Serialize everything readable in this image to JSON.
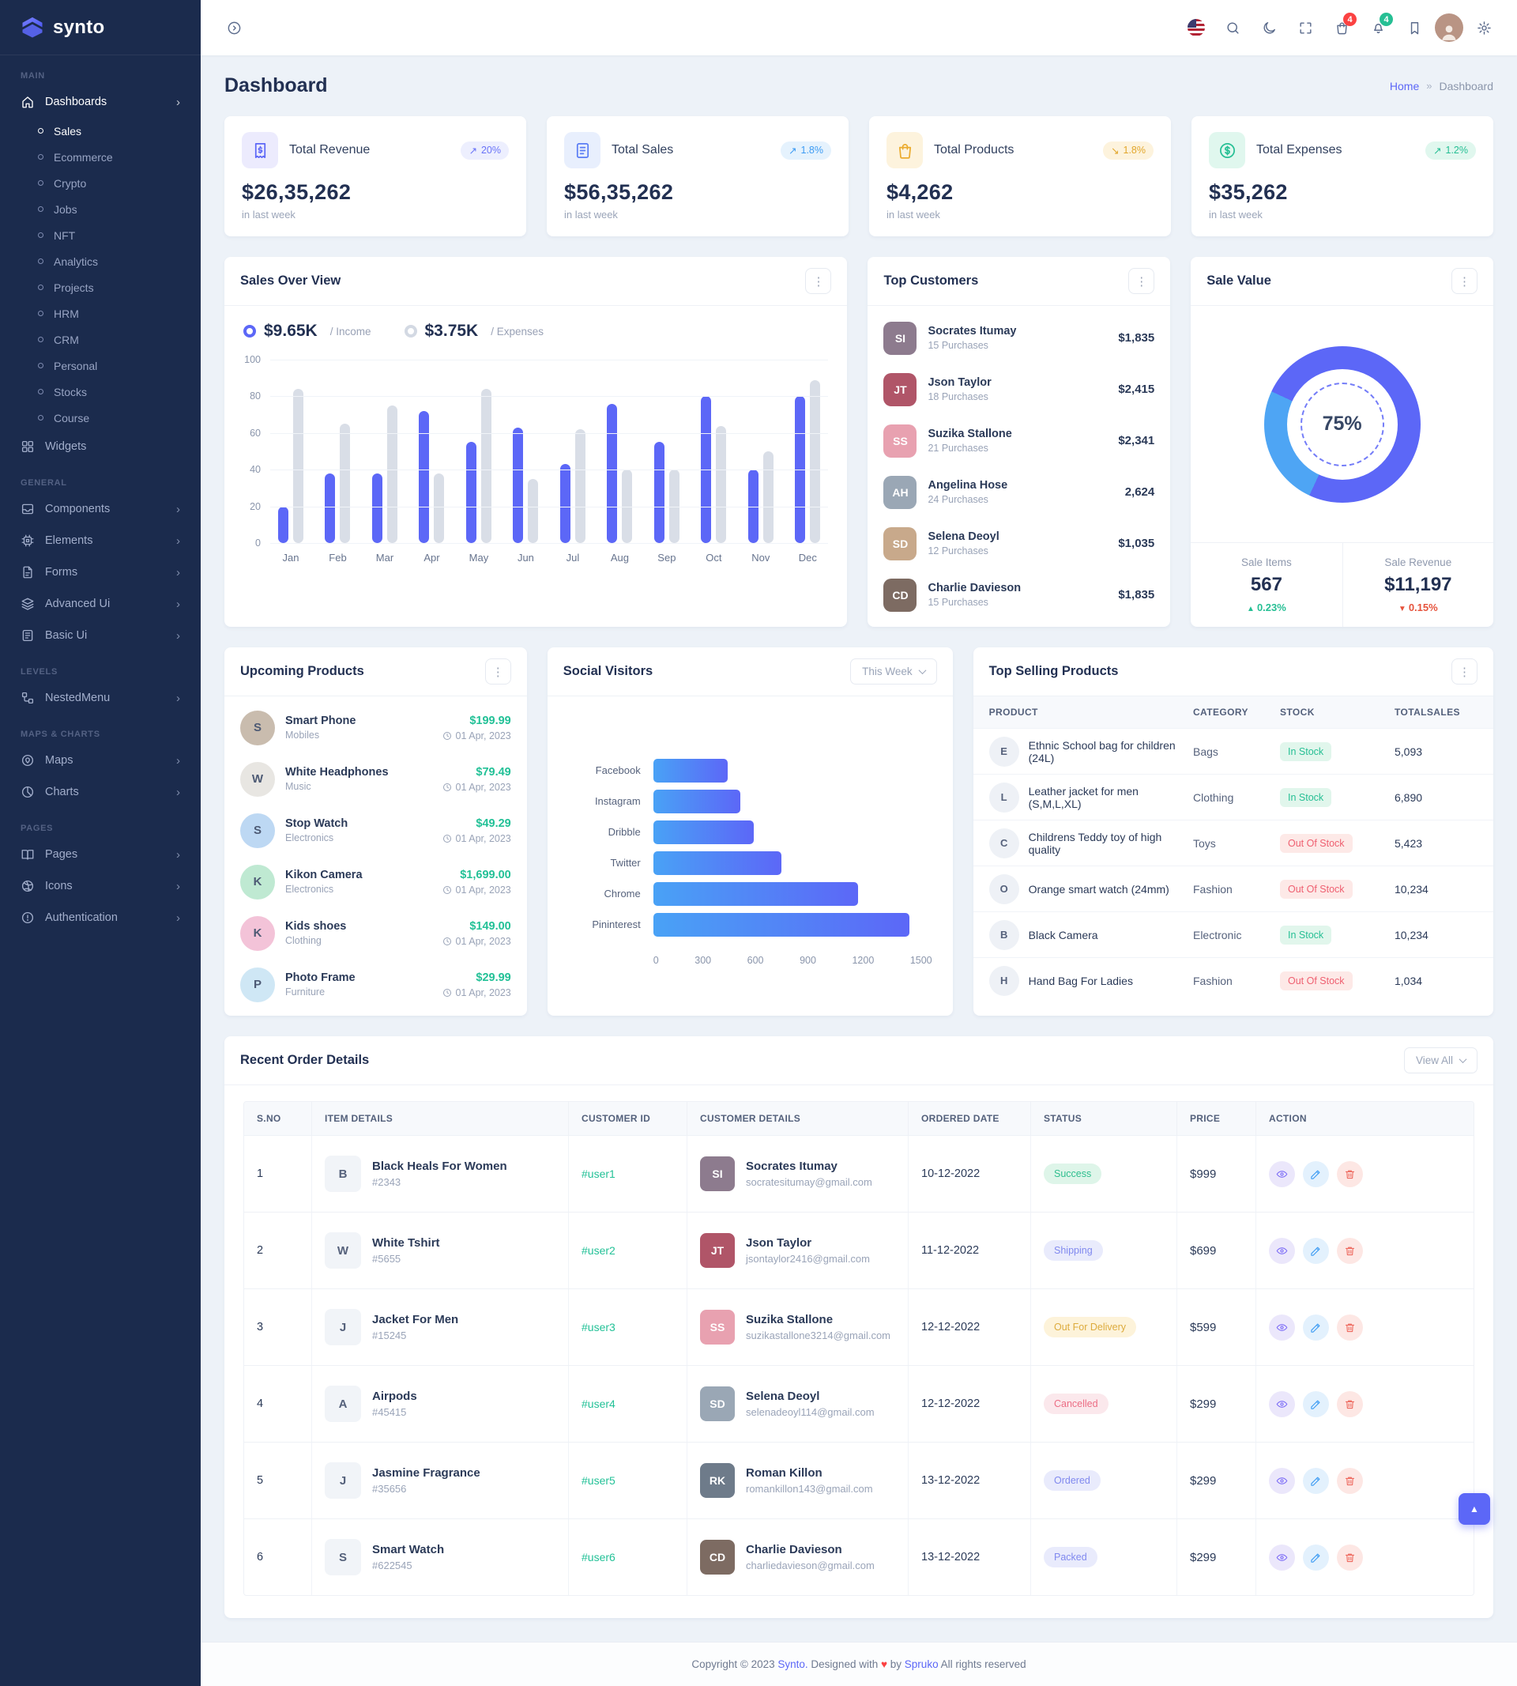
{
  "brand": {
    "name": "synto"
  },
  "topbar": {
    "cart_badge": "4",
    "bell_badge": "4"
  },
  "page": {
    "title": "Dashboard",
    "breadcrumb_home": "Home",
    "breadcrumb_sep": "»",
    "breadcrumb_current": "Dashboard"
  },
  "sidebar": {
    "main_label": "MAIN",
    "general_label": "GENERAL",
    "levels_label": "LEVELS",
    "maps_label": "MAPS & CHARTS",
    "pages_label": "PAGES",
    "dashboards": "Dashboards",
    "dashboards_children": [
      "Sales",
      "Ecommerce",
      "Crypto",
      "Jobs",
      "NFT",
      "Analytics",
      "Projects",
      "HRM",
      "CRM",
      "Personal",
      "Stocks",
      "Course"
    ],
    "widgets": "Widgets",
    "general_items": [
      "Components",
      "Elements",
      "Forms",
      "Advanced Ui",
      "Basic Ui"
    ],
    "levels_items": [
      "NestedMenu"
    ],
    "maps_items": [
      "Maps",
      "Charts"
    ],
    "pages_items": [
      "Pages",
      "Icons",
      "Authentication"
    ]
  },
  "stats": [
    {
      "title": "Total Revenue",
      "value": "$26,35,262",
      "note": "in last week",
      "badge": "20%",
      "arrow": "↗"
    },
    {
      "title": "Total Sales",
      "value": "$56,35,262",
      "note": "in last week",
      "badge": "1.8%",
      "arrow": "↗"
    },
    {
      "title": "Total Products",
      "value": "$4,262",
      "note": "in last week",
      "badge": "1.8%",
      "arrow": "↘"
    },
    {
      "title": "Total Expenses",
      "value": "$35,262",
      "note": "in last week",
      "badge": "1.2%",
      "arrow": "↗"
    }
  ],
  "sales_overview": {
    "title": "Sales Over View",
    "legend": [
      {
        "value": "$9.65K",
        "label": "/ Income"
      },
      {
        "value": "$3.75K",
        "label": "/ Expenses"
      }
    ]
  },
  "top_customers": {
    "title": "Top Customers",
    "items": [
      {
        "name": "Socrates Itumay",
        "purchases": "15 Purchases",
        "amount": "$1,835",
        "initials": "SI",
        "avatar_bg": "#8d7b8e"
      },
      {
        "name": "Json Taylor",
        "purchases": "18 Purchases",
        "amount": "$2,415",
        "initials": "JT",
        "avatar_bg": "#b05568"
      },
      {
        "name": "Suzika Stallone",
        "purchases": "21 Purchases",
        "amount": "$2,341",
        "initials": "SS",
        "avatar_bg": "#e8a1b0"
      },
      {
        "name": "Angelina Hose",
        "purchases": "24 Purchases",
        "amount": "2,624",
        "initials": "AH",
        "avatar_bg": "#9aa7b5"
      },
      {
        "name": "Selena Deoyl",
        "purchases": "12 Purchases",
        "amount": "$1,035",
        "initials": "SD",
        "avatar_bg": "#c8a98b"
      },
      {
        "name": "Charlie Davieson",
        "purchases": "15 Purchases",
        "amount": "$1,835",
        "initials": "CD",
        "avatar_bg": "#7d6b62"
      }
    ]
  },
  "sale_value": {
    "title": "Sale Value",
    "percent": "75%",
    "items_label": "Sale Items",
    "items_value": "567",
    "items_delta": "0.23%",
    "items_tri": "▲",
    "revenue_label": "Sale Revenue",
    "revenue_value": "$11,197",
    "revenue_delta": "0.15%",
    "revenue_tri": "▼"
  },
  "upcoming": {
    "title": "Upcoming Products",
    "items": [
      {
        "name": "Smart Phone",
        "category": "Mobiles",
        "price": "$199.99",
        "date": "01 Apr, 2023",
        "letter": "S",
        "bg": "#c9bcae"
      },
      {
        "name": "White Headphones",
        "category": "Music",
        "price": "$79.49",
        "date": "01 Apr, 2023",
        "letter": "W",
        "bg": "#e8e6e2"
      },
      {
        "name": "Stop Watch",
        "category": "Electronics",
        "price": "$49.29",
        "date": "01 Apr, 2023",
        "letter": "S",
        "bg": "#bdd8f3"
      },
      {
        "name": "Kikon Camera",
        "category": "Electronics",
        "price": "$1,699.00",
        "date": "01 Apr, 2023",
        "letter": "K",
        "bg": "#bfe9d2"
      },
      {
        "name": "Kids shoes",
        "category": "Clothing",
        "price": "$149.00",
        "date": "01 Apr, 2023",
        "letter": "K",
        "bg": "#f3c3d8"
      },
      {
        "name": "Photo Frame",
        "category": "Furniture",
        "price": "$29.99",
        "date": "01 Apr, 2023",
        "letter": "P",
        "bg": "#cfe7f5"
      }
    ]
  },
  "social": {
    "title": "Social Visitors",
    "filter_label": "This Week"
  },
  "top_selling": {
    "title": "Top Selling Products",
    "headers": [
      "PRODUCT",
      "CATEGORY",
      "STOCK",
      "TOTALSALES"
    ],
    "rows": [
      {
        "product": "Ethnic School bag for children (24L)",
        "category": "Bags",
        "stock": "In Stock",
        "sales": "5,093",
        "letter": "E"
      },
      {
        "product": "Leather jacket for men (S,M,L,XL)",
        "category": "Clothing",
        "stock": "In Stock",
        "sales": "6,890",
        "letter": "L"
      },
      {
        "product": "Childrens Teddy toy of high quality",
        "category": "Toys",
        "stock": "Out Of Stock",
        "sales": "5,423",
        "letter": "C"
      },
      {
        "product": "Orange smart watch (24mm)",
        "category": "Fashion",
        "stock": "Out Of Stock",
        "sales": "10,234",
        "letter": "O"
      },
      {
        "product": "Black Camera",
        "category": "Electronic",
        "stock": "In Stock",
        "sales": "10,234",
        "letter": "B"
      },
      {
        "product": "Hand Bag For Ladies",
        "category": "Fashion",
        "stock": "Out Of Stock",
        "sales": "1,034",
        "letter": "H"
      }
    ]
  },
  "recent_orders": {
    "title": "Recent Order Details",
    "view_all": "View All",
    "headers": [
      "S.NO",
      "ITEM DETAILS",
      "CUSTOMER ID",
      "CUSTOMER DETAILS",
      "ORDERED DATE",
      "STATUS",
      "PRICE",
      "ACTION"
    ],
    "rows": [
      {
        "sno": "1",
        "item": "Black Heals For Women",
        "item_id": "#2343",
        "letter": "B",
        "customer_id": "#user1",
        "customer": "Socrates Itumay",
        "email": "socratesitumay@gmail.com",
        "initials": "SI",
        "avatar_bg": "#8d7b8e",
        "date": "10-12-2022",
        "status": "Success",
        "price": "$999"
      },
      {
        "sno": "2",
        "item": "White Tshirt",
        "item_id": "#5655",
        "letter": "W",
        "customer_id": "#user2",
        "customer": "Json Taylor",
        "email": "jsontaylor2416@gmail.com",
        "initials": "JT",
        "avatar_bg": "#b05568",
        "date": "11-12-2022",
        "status": "Shipping",
        "price": "$699"
      },
      {
        "sno": "3",
        "item": "Jacket For Men",
        "item_id": "#15245",
        "letter": "J",
        "customer_id": "#user3",
        "customer": "Suzika Stallone",
        "email": "suzikastallone3214@gmail.com",
        "initials": "SS",
        "avatar_bg": "#e8a1b0",
        "date": "12-12-2022",
        "status": "Out For Delivery",
        "price": "$599"
      },
      {
        "sno": "4",
        "item": "Airpods",
        "item_id": "#45415",
        "letter": "A",
        "customer_id": "#user4",
        "customer": "Selena Deoyl",
        "email": "selenadeoyl114@gmail.com",
        "initials": "SD",
        "avatar_bg": "#9aa7b5",
        "date": "12-12-2022",
        "status": "Cancelled",
        "price": "$299"
      },
      {
        "sno": "5",
        "item": "Jasmine Fragrance",
        "item_id": "#35656",
        "letter": "J",
        "customer_id": "#user5",
        "customer": "Roman Killon",
        "email": "romankillon143@gmail.com",
        "initials": "RK",
        "avatar_bg": "#6e7b8a",
        "date": "13-12-2022",
        "status": "Ordered",
        "price": "$299"
      },
      {
        "sno": "6",
        "item": "Smart Watch",
        "item_id": "#622545",
        "letter": "S",
        "customer_id": "#user6",
        "customer": "Charlie Davieson",
        "email": "charliedavieson@gmail.com",
        "initials": "CD",
        "avatar_bg": "#7d6b62",
        "date": "13-12-2022",
        "status": "Packed",
        "price": "$299"
      }
    ]
  },
  "footer": {
    "copyright": "Copyright © 2023",
    "brand": "Synto.",
    "middle": "Designed with",
    "heart": "♥",
    "by": "by",
    "author": "Spruko",
    "rights": "All rights reserved"
  },
  "colors": {
    "primary": "#5C67F7",
    "secondary": "#4EA5F4",
    "success": "#26BF94",
    "danger": "#E6533C",
    "warning": "#F5B849",
    "sidebar_bg": "#1B2B4D"
  },
  "chart_data": [
    {
      "id": "sales_overview",
      "type": "bar",
      "title": "Sales Over View",
      "categories": [
        "Jan",
        "Feb",
        "Mar",
        "Apr",
        "May",
        "Jun",
        "Jul",
        "Aug",
        "Sep",
        "Oct",
        "Nov",
        "Dec"
      ],
      "series": [
        {
          "name": "Income",
          "color": "#5C67F7",
          "values": [
            20,
            38,
            38,
            72,
            55,
            63,
            43,
            76,
            55,
            80,
            40,
            80
          ]
        },
        {
          "name": "Expenses",
          "color": "#D9DEE7",
          "values": [
            84,
            65,
            75,
            38,
            84,
            35,
            62,
            40,
            40,
            64,
            50,
            89
          ]
        }
      ],
      "ylim": [
        0,
        100
      ],
      "yticks": [
        100,
        80,
        60,
        40,
        20,
        0
      ],
      "legend_position": "top-left",
      "grid": "horizontal"
    },
    {
      "id": "social_visitors",
      "type": "bar-horizontal",
      "title": "Social Visitors",
      "categories": [
        "Facebook",
        "Instagram",
        "Dribble",
        "Twitter",
        "Chrome",
        "Pininterest"
      ],
      "values": [
        400,
        470,
        540,
        690,
        1100,
        1380
      ],
      "xlim": [
        0,
        1500
      ],
      "xticks": [
        0,
        300,
        600,
        900,
        1200,
        1500
      ],
      "bar_gradient": [
        "#49A2F6",
        "#5C67F7"
      ]
    },
    {
      "id": "sale_value",
      "type": "donut",
      "title": "Sale Value",
      "center_label": "75%",
      "values": [
        75,
        25
      ],
      "segments": [
        {
          "color": "#5C67F7",
          "from": 0,
          "to": 205
        },
        {
          "color": "#4EA5F4",
          "from": 205,
          "to": 295
        },
        {
          "color": "#5C67F7",
          "from": 295,
          "to": 360
        }
      ]
    }
  ]
}
